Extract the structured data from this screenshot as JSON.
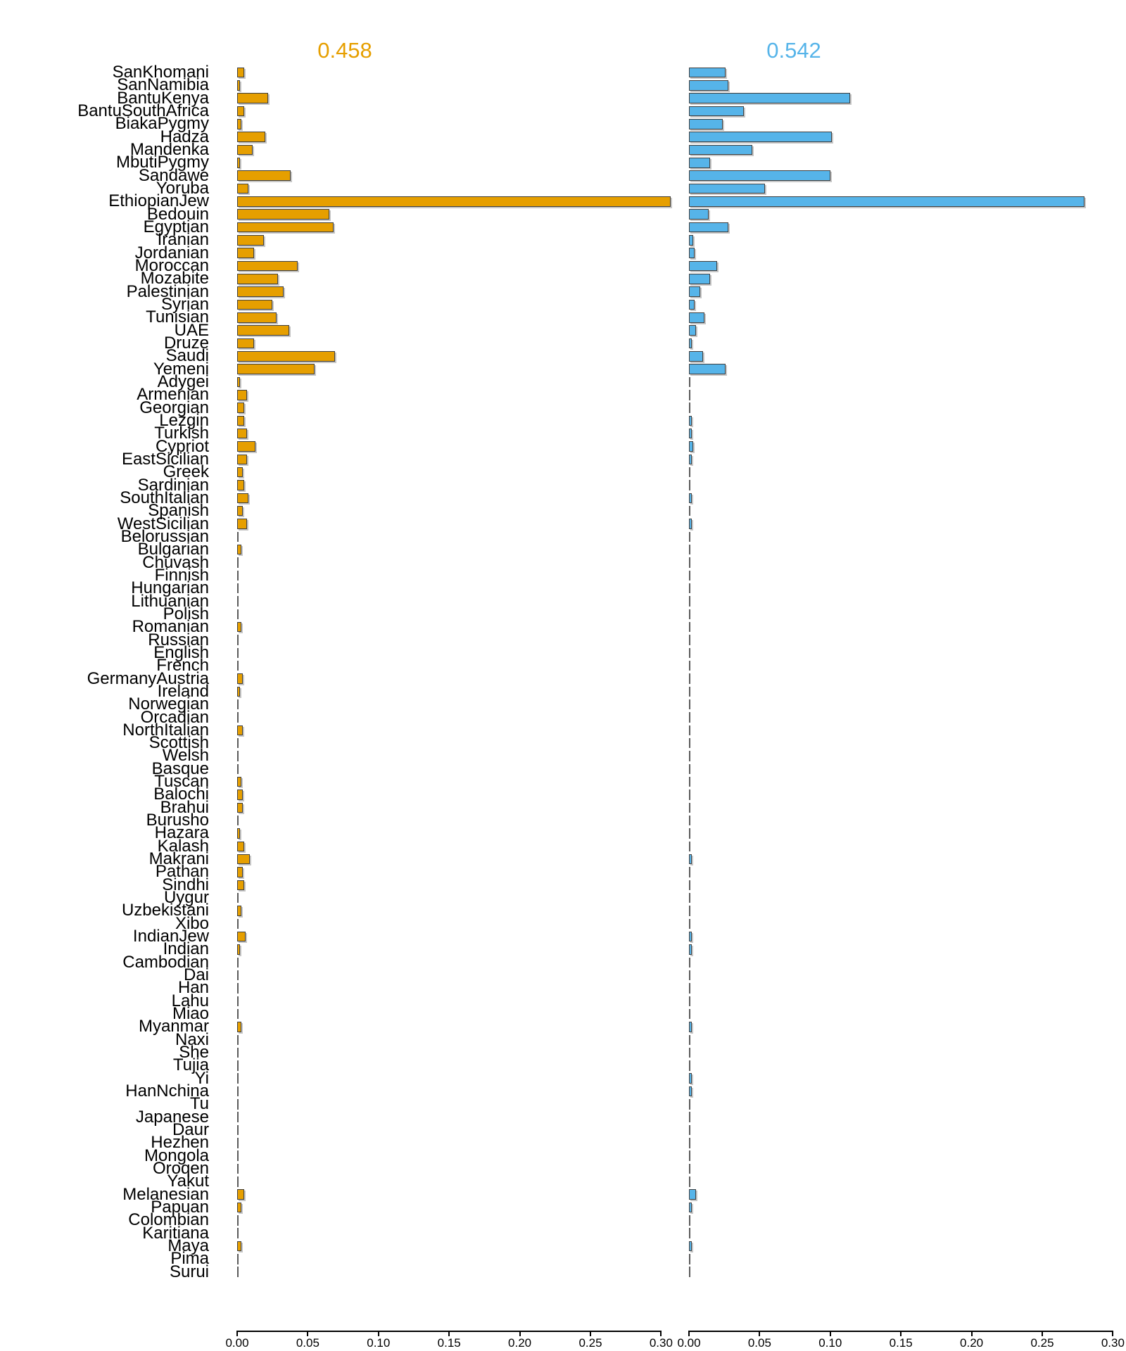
{
  "panels": [
    {
      "title": "0.458",
      "color": "#E69F00"
    },
    {
      "title": "0.542",
      "color": "#56B4E9"
    }
  ],
  "axis": {
    "tick_labels": [
      "0.00",
      "0.05",
      "0.10",
      "0.15",
      "0.20",
      "0.25",
      "0.30"
    ],
    "tick_values": [
      0,
      0.05,
      0.1,
      0.15,
      0.2,
      0.25,
      0.3
    ]
  },
  "chart_data": {
    "type": "bar",
    "orientation": "horizontal",
    "title": "",
    "xlabel": "",
    "ylabel": "",
    "xlim": [
      0,
      0.3
    ],
    "grid": false,
    "legend": "none",
    "categories": [
      "SanKhomani",
      "SanNamibia",
      "BantuKenya",
      "BantuSouthAfrica",
      "BiakaPygmy",
      "Hadza",
      "Mandenka",
      "MbutiPygmy",
      "Sandawe",
      "Yoruba",
      "EthiopianJew",
      "Bedouin",
      "Egyptian",
      "Iranian",
      "Jordanian",
      "Moroccan",
      "Mozabite",
      "Palestinian",
      "Syrian",
      "Tunisian",
      "UAE",
      "Druze",
      "Saudi",
      "Yemeni",
      "Adygei",
      "Armenian",
      "Georgian",
      "Lezgin",
      "Turkish",
      "Cypriot",
      "EastSicilian",
      "Greek",
      "Sardinian",
      "SouthItalian",
      "Spanish",
      "WestSicilian",
      "Belorussian",
      "Bulgarian",
      "Chuvash",
      "Finnish",
      "Hungarian",
      "Lithuanian",
      "Polish",
      "Romanian",
      "Russian",
      "English",
      "French",
      "GermanyAustria",
      "Ireland",
      "Norwegian",
      "Orcadian",
      "NorthItalian",
      "Scottish",
      "Welsh",
      "Basque",
      "Tuscan",
      "Balochi",
      "Brahui",
      "Burusho",
      "Hazara",
      "Kalash",
      "Makrani",
      "Pathan",
      "Sindhi",
      "Uygur",
      "Uzbekistani",
      "Xibo",
      "IndianJew",
      "Indian",
      "Cambodian",
      "Dai",
      "Han",
      "Lahu",
      "Miao",
      "Myanmar",
      "Naxi",
      "She",
      "Tujia",
      "Yi",
      "HanNchina",
      "Tu",
      "Japanese",
      "Daur",
      "Hezhen",
      "Mongola",
      "Oroqen",
      "Yakut",
      "Melanesian",
      "Papuan",
      "Colombian",
      "Karitiana",
      "Maya",
      "Pima",
      "Surui"
    ],
    "series": [
      {
        "name": "0.458",
        "color": "#E69F00",
        "values": [
          0.005,
          0.002,
          0.022,
          0.005,
          0.003,
          0.02,
          0.011,
          0.002,
          0.038,
          0.008,
          0.307,
          0.065,
          0.068,
          0.019,
          0.012,
          0.043,
          0.029,
          0.033,
          0.025,
          0.028,
          0.037,
          0.012,
          0.069,
          0.055,
          0.002,
          0.007,
          0.005,
          0.005,
          0.007,
          0.013,
          0.007,
          0.004,
          0.005,
          0.008,
          0.004,
          0.007,
          0.001,
          0.003,
          0.001,
          0.001,
          0.001,
          0.0005,
          0.001,
          0.003,
          0.001,
          0.001,
          0.001,
          0.004,
          0.002,
          0.001,
          0.001,
          0.004,
          0.001,
          0.001,
          0.001,
          0.003,
          0.004,
          0.004,
          0.001,
          0.002,
          0.005,
          0.009,
          0.004,
          0.005,
          0.001,
          0.003,
          0.001,
          0.006,
          0.002,
          0.001,
          0.001,
          0.001,
          0.0005,
          0.001,
          0.003,
          0.001,
          0.001,
          0.001,
          0.001,
          0.001,
          0.001,
          0.001,
          0.001,
          0.001,
          0.001,
          0.001,
          0.001,
          0.005,
          0.003,
          0.001,
          0.0005,
          0.003,
          0.001,
          0.001
        ]
      },
      {
        "name": "0.542",
        "color": "#56B4E9",
        "values": [
          0.026,
          0.028,
          0.114,
          0.039,
          0.024,
          0.101,
          0.045,
          0.015,
          0.1,
          0.054,
          0.28,
          0.014,
          0.028,
          0.003,
          0.004,
          0.02,
          0.015,
          0.008,
          0.004,
          0.011,
          0.005,
          0.002,
          0.01,
          0.026,
          0.001,
          0.001,
          0.001,
          0.002,
          0.002,
          0.003,
          0.002,
          0.001,
          0.001,
          0.002,
          0.001,
          0.002,
          0.001,
          0.001,
          0.001,
          0.001,
          0.001,
          0.001,
          0.001,
          0.001,
          0.001,
          0.001,
          0.001,
          0.001,
          0.001,
          0.001,
          0.001,
          0.001,
          0.001,
          0.001,
          0.001,
          0.001,
          0.001,
          0.001,
          0.001,
          0.001,
          0.001,
          0.002,
          0.001,
          0.001,
          0.001,
          0.001,
          0.001,
          0.002,
          0.002,
          0.001,
          0.001,
          0.001,
          0.001,
          0.001,
          0.002,
          0.001,
          0.001,
          0.001,
          0.002,
          0.002,
          0.001,
          0.001,
          0.001,
          0.001,
          0.001,
          0.001,
          0.001,
          0.005,
          0.002,
          0.001,
          0.001,
          0.002,
          0.001,
          0.001
        ]
      }
    ]
  }
}
